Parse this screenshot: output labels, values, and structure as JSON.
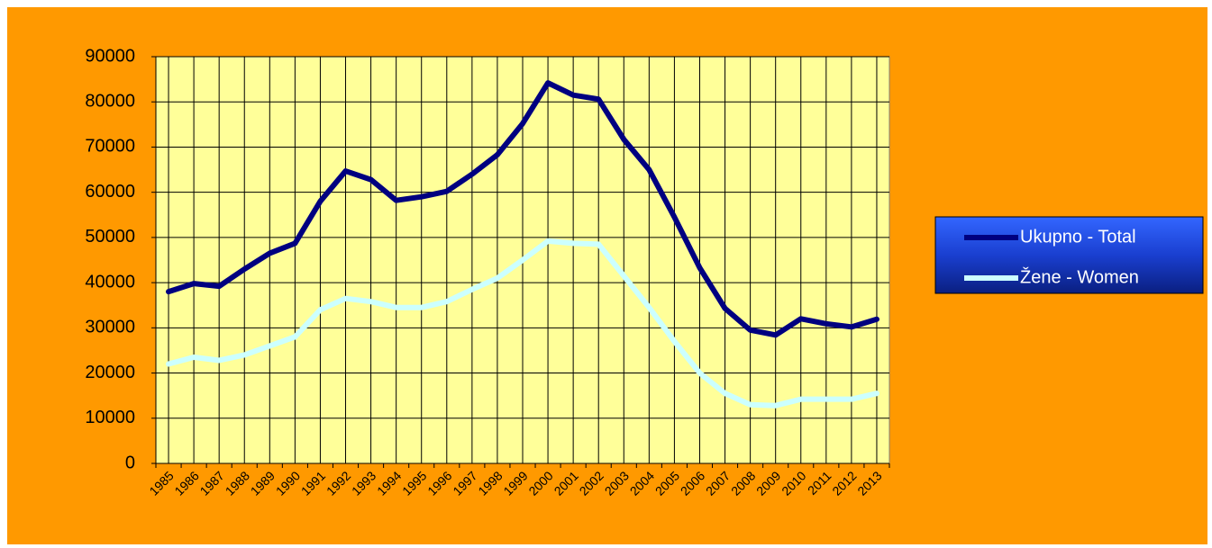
{
  "chart_data": {
    "type": "line",
    "categories": [
      "1985",
      "1986",
      "1987",
      "1988",
      "1989",
      "1990",
      "1991",
      "1992",
      "1993",
      "1994",
      "1995",
      "1996",
      "1997",
      "1998",
      "1999",
      "2000",
      "2001",
      "2002",
      "2003",
      "2004",
      "2005",
      "2006",
      "2007",
      "2008",
      "2009",
      "2010",
      "2011",
      "2012",
      "2013"
    ],
    "series": [
      {
        "name": "Ukupno - Total",
        "color": "#000080",
        "values": [
          38000,
          39800,
          39200,
          43000,
          46500,
          48700,
          58000,
          64700,
          62800,
          58200,
          59000,
          60200,
          64000,
          68300,
          75200,
          84200,
          81500,
          80600,
          71700,
          65000,
          54500,
          43300,
          34300,
          29500,
          28400,
          32000,
          30900,
          30200,
          31900
        ]
      },
      {
        "name": "Žene - Women",
        "color": "#CCFFFF",
        "values": [
          22000,
          23500,
          22800,
          24000,
          26000,
          28000,
          34000,
          36500,
          35800,
          34500,
          34500,
          35800,
          38500,
          41000,
          45000,
          49200,
          48700,
          48500,
          41500,
          34500,
          27000,
          20000,
          15500,
          13000,
          12800,
          14200,
          14200,
          14200,
          15500
        ]
      }
    ],
    "ylim": [
      0,
      90000
    ],
    "yticks": [
      0,
      10000,
      20000,
      30000,
      40000,
      50000,
      60000,
      70000,
      80000,
      90000
    ],
    "grid": true,
    "legend": "right"
  }
}
